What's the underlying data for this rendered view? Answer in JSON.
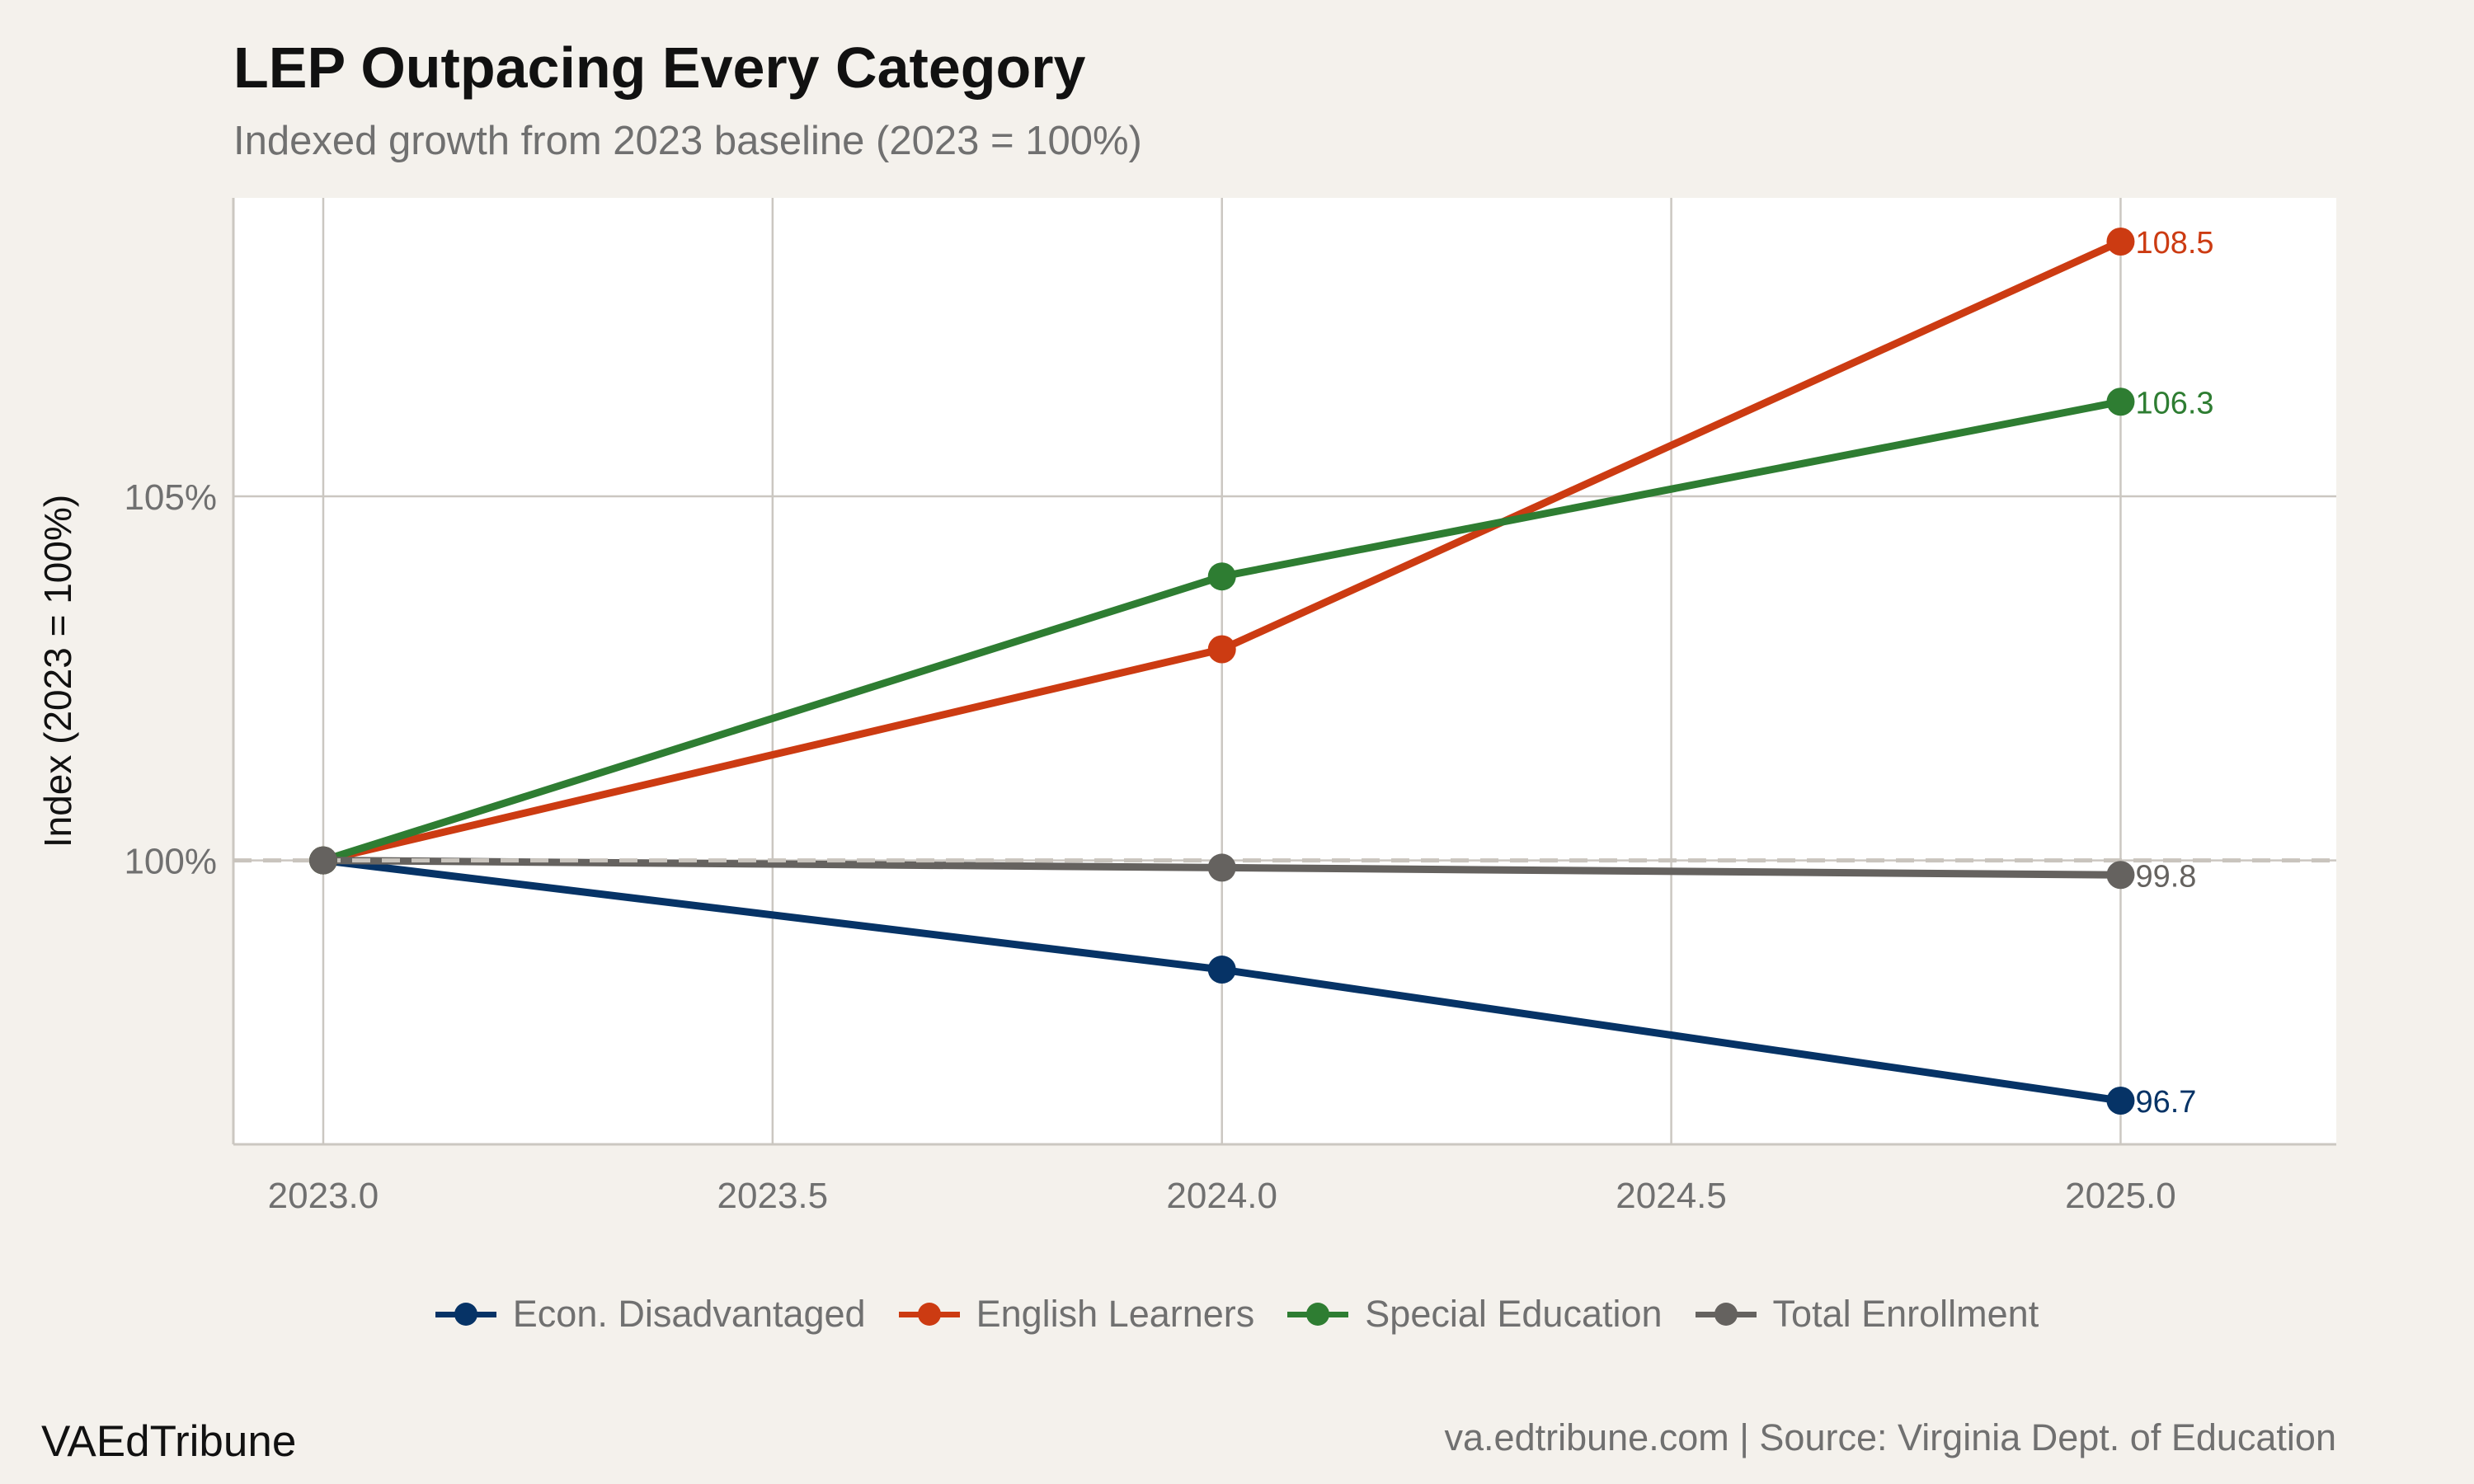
{
  "title": "LEP Outpacing Every Category",
  "subtitle": "Indexed growth from 2023 baseline (2023 = 100%)",
  "footer": {
    "brand": "VAEdTribune",
    "source": "va.edtribune.com | Source: Virginia Dept. of Education"
  },
  "colors": {
    "background": "#f4f1ec",
    "panel": "#ffffff",
    "grid": "#cbc7c1",
    "reference_line": "#c9c4bd"
  },
  "chart_data": {
    "type": "line",
    "title": "LEP Outpacing Every Category",
    "subtitle": "Indexed growth from 2023 baseline (2023 = 100%)",
    "xlabel": "",
    "ylabel": "Index (2023 = 100%)",
    "x": [
      2023,
      2024,
      2025
    ],
    "xlim": [
      2022.9,
      2025.24
    ],
    "ylim": [
      96.1,
      109.1
    ],
    "x_ticks": [
      "2023.0",
      "2023.5",
      "2024.0",
      "2024.5",
      "2025.0"
    ],
    "x_tick_values": [
      2023,
      2023.5,
      2024,
      2024.5,
      2025
    ],
    "y_ticks": [
      "100%",
      "105%"
    ],
    "y_tick_values": [
      100,
      105
    ],
    "reference_line": 100,
    "grid": true,
    "legend_position": "bottom",
    "series": [
      {
        "name": "Econ. Disadvantaged",
        "color": "#063366",
        "values": [
          100,
          98.5,
          96.7
        ],
        "end_label": "96.7"
      },
      {
        "name": "English Learners",
        "color": "#cc3b12",
        "values": [
          100,
          102.9,
          108.5
        ],
        "end_label": "108.5"
      },
      {
        "name": "Special Education",
        "color": "#2e7d32",
        "values": [
          100,
          103.9,
          106.3
        ],
        "end_label": "106.3"
      },
      {
        "name": "Total Enrollment",
        "color": "#65625f",
        "values": [
          100,
          99.9,
          99.8
        ],
        "end_label": "99.8"
      }
    ]
  }
}
